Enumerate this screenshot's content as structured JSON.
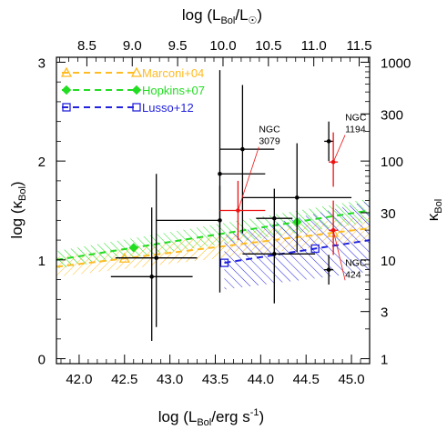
{
  "chart_data": {
    "type": "scatter",
    "colors": {
      "marconi": "#ffbb22",
      "hopkins": "#22dd22",
      "lusso": "#2222dd",
      "sample": "#000000",
      "highlight": "#ee1111"
    },
    "axes": {
      "bottom": {
        "label_main": "log (L",
        "label_sub": "Bol",
        "label_tail": "/erg s",
        "label_sup": "-1",
        "label_close": ")",
        "range": [
          41.75,
          45.2
        ],
        "ticks": [
          "42.0",
          "42.5",
          "43.0",
          "43.5",
          "44.0",
          "44.5",
          "45.0"
        ]
      },
      "top": {
        "label_main": "log (L",
        "label_sub1": "Bol",
        "label_mid": "/L",
        "label_sub2": "☉",
        "label_close": ")",
        "ticks": [
          "8.5",
          "9.0",
          "9.5",
          "10.0",
          "10.5",
          "11.0",
          "11.5"
        ]
      },
      "left": {
        "label_main": "log (κ",
        "label_sub": "Bol",
        "label_close": ")",
        "range": [
          -0.05,
          3.05
        ],
        "ticks": [
          "0",
          "1",
          "2",
          "3"
        ]
      },
      "right": {
        "label_main": "κ",
        "label_sub": "Bol",
        "ticks": [
          "1",
          "3",
          "10",
          "30",
          "100",
          "300",
          "1000"
        ]
      }
    },
    "legend": {
      "placement": "top-left",
      "entries": [
        {
          "label": "Marconi+04",
          "color": "#ffbb22",
          "marker": "triangle"
        },
        {
          "label": "Hopkins+07",
          "color": "#22dd22",
          "marker": "diamond"
        },
        {
          "label": "Lusso+12",
          "color": "#2222dd",
          "marker": "square"
        }
      ]
    },
    "series": [
      {
        "name": "Marconi+04",
        "x": [
          41.75,
          45.2
        ],
        "y": [
          0.93,
          1.32
        ],
        "markers_x": [
          42.5,
          44.8
        ],
        "band": [
          0.1,
          0.13
        ]
      },
      {
        "name": "Hopkins+07",
        "x": [
          41.75,
          45.2
        ],
        "y": [
          1.0,
          1.5
        ],
        "markers_x": [
          42.6,
          44.4
        ],
        "band": [
          0.09,
          0.12
        ]
      },
      {
        "name": "Lusso+12",
        "x": [
          43.6,
          45.2
        ],
        "y": [
          0.97,
          1.2
        ],
        "markers_x": [
          43.6,
          44.6
        ],
        "band_lower": [
          -0.27,
          -0.32
        ],
        "band_upper": [
          0.28,
          0.4
        ]
      }
    ],
    "points": [
      {
        "x": 42.85,
        "y": 1.02,
        "xerr": [
          0.45,
          0.45
        ],
        "yerr": [
          0.7,
          0.85
        ],
        "color": "black"
      },
      {
        "x": 42.8,
        "y": 0.83,
        "xerr": [
          0.45,
          0.45
        ],
        "yerr": [
          0.65,
          0.7
        ],
        "color": "black"
      },
      {
        "x": 43.55,
        "y": 1.87,
        "xerr": [
          0.0,
          0.5
        ],
        "yerr": [
          1.2,
          1.05
        ],
        "color": "black"
      },
      {
        "x": 43.55,
        "y": 1.4,
        "xerr": [
          0.7,
          0.0
        ],
        "yerr": [
          0.25,
          0.35
        ],
        "color": "black"
      },
      {
        "x": 43.8,
        "y": 2.12,
        "xerr": [
          0.25,
          0.35
        ],
        "yerr": [
          0.85,
          0.65
        ],
        "color": "black"
      },
      {
        "x": 43.75,
        "y": 1.5,
        "xerr": [
          0.2,
          0.3
        ],
        "yerr": [
          0.3,
          0.3
        ],
        "color": "red"
      },
      {
        "x": 44.15,
        "y": 1.42,
        "xerr": [
          0.2,
          0.2
        ],
        "yerr": [
          0.35,
          0.3
        ],
        "color": "black"
      },
      {
        "x": 44.15,
        "y": 1.06,
        "xerr": [
          0.35,
          0.45
        ],
        "yerr": [
          0.5,
          0.33
        ],
        "color": "black"
      },
      {
        "x": 44.4,
        "y": 1.63,
        "xerr": [
          0.6,
          0.6
        ],
        "yerr": [
          0.55,
          0.55
        ],
        "color": "black"
      },
      {
        "x": 44.75,
        "y": 2.2,
        "xerr": [
          0.05,
          0.05
        ],
        "yerr": [
          0.2,
          0.2
        ],
        "color": "black"
      },
      {
        "x": 44.8,
        "y": 1.99,
        "xerr": [
          0.05,
          0.05
        ],
        "yerr": [
          0.25,
          0.3
        ],
        "color": "red"
      },
      {
        "x": 44.8,
        "y": 1.3,
        "xerr": [
          0.05,
          0.05
        ],
        "yerr": [
          0.25,
          0.3
        ],
        "color": "red"
      },
      {
        "x": 44.75,
        "y": 0.9,
        "xerr": [
          0.05,
          0.05
        ],
        "yerr": [
          0.15,
          0.15
        ],
        "color": "black"
      }
    ],
    "annotations": [
      {
        "text": [
          "NGC",
          "3079"
        ],
        "text_x": 43.98,
        "text_y": 2.18,
        "point_x": 43.75,
        "point_y": 1.5
      },
      {
        "text": [
          "NGC",
          "1194"
        ],
        "text_x": 44.93,
        "text_y": 2.3,
        "point_x": 44.8,
        "point_y": 1.99
      },
      {
        "text": [
          "NGC",
          "424"
        ],
        "text_x": 44.93,
        "text_y": 0.83,
        "point_x": 44.8,
        "point_y": 1.3
      }
    ]
  }
}
